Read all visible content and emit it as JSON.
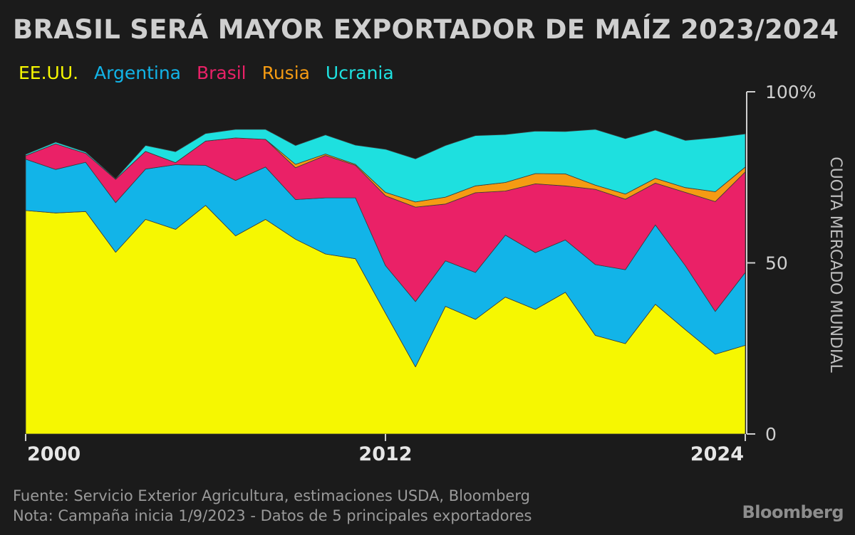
{
  "title": "BRASIL SERÁ MAYOR EXPORTADOR DE MAÍZ 2023/2024",
  "legend": [
    {
      "name": "EE.UU.",
      "color": "#f6f701"
    },
    {
      "name": "Argentina",
      "color": "#12b4e8"
    },
    {
      "name": "Brasil",
      "color": "#ea2167"
    },
    {
      "name": "Rusia",
      "color": "#f59b13"
    },
    {
      "name": "Ucrania",
      "color": "#1ee0df"
    }
  ],
  "footer": {
    "source": "Fuente: Servicio Exterior Agricultura, estimaciones USDA, Bloomberg",
    "note": "Nota: Campaña inicia 1/9/2023 - Datos de 5 principales exportadores"
  },
  "brand": "Bloomberg",
  "chart_data": {
    "type": "area",
    "stacked": true,
    "title": "BRASIL SERÁ MAYOR EXPORTADOR DE MAÍZ 2023/2024",
    "ylabel": "CUOTA MERCADO MUNDIAL",
    "xlabel": "",
    "ylim": [
      0,
      100
    ],
    "xlim": [
      2000,
      2024
    ],
    "y_ticks": [
      {
        "value": 0,
        "label": "0"
      },
      {
        "value": 50,
        "label": "50"
      },
      {
        "value": 100,
        "label": "100%"
      }
    ],
    "x_ticks": [
      {
        "value": 2000,
        "label": "2000"
      },
      {
        "value": 2012,
        "label": "2012"
      },
      {
        "value": 2024,
        "label": "2024"
      }
    ],
    "x": [
      2000,
      2001,
      2002,
      2003,
      2004,
      2005,
      2006,
      2007,
      2008,
      2009,
      2010,
      2011,
      2012,
      2013,
      2014,
      2015,
      2016,
      2017,
      2018,
      2019,
      2020,
      2021,
      2022,
      2023,
      2024
    ],
    "series": [
      {
        "name": "EE.UU.",
        "color": "#f6f701",
        "values": [
          65.3,
          64.6,
          65.0,
          53.1,
          62.7,
          59.8,
          66.8,
          57.9,
          62.7,
          56.9,
          52.6,
          51.2,
          35.3,
          19.6,
          37.3,
          33.5,
          40.0,
          36.4,
          41.4,
          28.8,
          26.4,
          37.9,
          30.5,
          23.3,
          25.9
        ]
      },
      {
        "name": "Argentina",
        "color": "#12b4e8",
        "values": [
          15.0,
          12.7,
          14.4,
          14.5,
          14.7,
          18.9,
          11.7,
          16.2,
          15.3,
          11.6,
          16.4,
          17.8,
          13.9,
          19.1,
          13.3,
          13.7,
          18.1,
          16.6,
          15.3,
          20.7,
          21.6,
          23.2,
          18.7,
          12.5,
          21.3
        ]
      },
      {
        "name": "Brasil",
        "color": "#ea2167",
        "values": [
          1.0,
          7.5,
          2.6,
          6.8,
          5.2,
          0.6,
          7.1,
          12.4,
          8.1,
          9.3,
          12.4,
          9.5,
          20.4,
          27.6,
          16.6,
          23.3,
          12.9,
          20.1,
          15.8,
          22.0,
          20.6,
          12.2,
          21.4,
          32.1,
          29.4
        ]
      },
      {
        "name": "Rusia",
        "color": "#f59b13",
        "values": [
          0,
          0,
          0,
          0,
          0,
          0,
          0,
          0,
          0,
          1.0,
          0.4,
          0.3,
          1.0,
          1.5,
          2.0,
          2.0,
          2.5,
          3.0,
          3.5,
          1.2,
          1.5,
          1.4,
          1.4,
          2.9,
          1.4
        ]
      },
      {
        "name": "Ucrania",
        "color": "#1ee0df",
        "values": [
          0.4,
          0.5,
          0.4,
          0.2,
          1.7,
          3.2,
          2.2,
          2.5,
          2.9,
          5.5,
          5.6,
          5.6,
          12.6,
          12.6,
          15.1,
          14.7,
          14.0,
          12.4,
          12.4,
          16.3,
          16.2,
          14.1,
          13.8,
          15.8,
          9.7
        ]
      }
    ]
  }
}
